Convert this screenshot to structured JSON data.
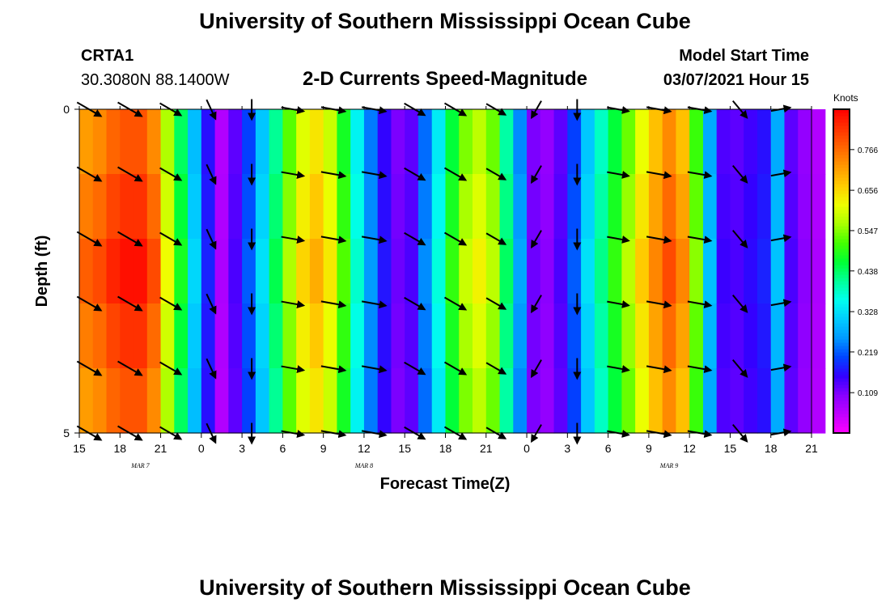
{
  "header": {
    "title": "University of Southern Mississippi Ocean Cube",
    "station": "CRTA1",
    "coords": "30.3080N 88.1400W",
    "plot_title": "2-D Currents Speed-Magnitude",
    "model_start_label": "Model Start Time",
    "model_start_value": "03/07/2021 Hour 15"
  },
  "footer": {
    "title": "University of Southern Mississippi Ocean Cube"
  },
  "colorbar": {
    "unit": "Knots",
    "tick_labels": [
      "0.766",
      "0.656",
      "0.547",
      "0.438",
      "0.328",
      "0.219",
      "0.109"
    ],
    "tick_values": [
      0.766,
      0.656,
      0.547,
      0.438,
      0.328,
      0.219,
      0.109
    ],
    "range": [
      0.0,
      0.875
    ],
    "colors": [
      "#ff00ff",
      "#c000ff",
      "#8800ff",
      "#3300ff",
      "#0044ff",
      "#0099ff",
      "#00ccff",
      "#00ffee",
      "#00ff99",
      "#00ff33",
      "#44ff00",
      "#aaff00",
      "#eeff00",
      "#ffcc00",
      "#ff9900",
      "#ff6600",
      "#ff3300",
      "#ff0000"
    ]
  },
  "chart_data": {
    "type": "heatmap",
    "title": "2-D Currents Speed-Magnitude",
    "xlabel": "Forecast Time(Z)",
    "ylabel": "Depth (ft)",
    "y_tick_labels": [
      "0",
      "5"
    ],
    "ylim": [
      0,
      5
    ],
    "x_tick_labels": [
      "15",
      "18",
      "21",
      "0",
      "3",
      "6",
      "9",
      "12",
      "15",
      "18",
      "21",
      "0",
      "3",
      "6",
      "9",
      "12",
      "15",
      "18",
      "21"
    ],
    "x_hours": [
      0,
      3,
      6,
      9,
      12,
      15,
      18,
      21,
      24,
      27,
      30,
      33,
      36,
      39,
      42,
      45,
      48,
      51,
      54
    ],
    "xlim": [
      0,
      54
    ],
    "date_labels": [
      {
        "label": "MAR 7",
        "hour": 4.5
      },
      {
        "label": "MAR 8",
        "hour": 21
      },
      {
        "label": "MAR 9",
        "hour": 43.5
      }
    ],
    "depth_layers": 5,
    "speed_knots_by_hour": [
      0.78,
      0.8,
      0.84,
      0.86,
      0.86,
      0.8,
      0.62,
      0.48,
      0.32,
      0.18,
      0.07,
      0.14,
      0.22,
      0.33,
      0.45,
      0.57,
      0.66,
      0.7,
      0.64,
      0.52,
      0.38,
      0.26,
      0.17,
      0.12,
      0.14,
      0.25,
      0.37,
      0.5,
      0.59,
      0.63,
      0.58,
      0.44,
      0.27,
      0.12,
      0.1,
      0.14,
      0.22,
      0.33,
      0.42,
      0.5,
      0.58,
      0.67,
      0.74,
      0.8,
      0.74,
      0.55,
      0.3,
      0.15,
      0.14,
      0.16,
      0.18,
      0.3,
      0.14,
      0.1,
      0.07
    ],
    "vector_hours": [
      0,
      3,
      6,
      9,
      12,
      15,
      18,
      21,
      24,
      27,
      30,
      33,
      36,
      39,
      42,
      45,
      48,
      51
    ],
    "vector_direction_deg": [
      120,
      120,
      120,
      155,
      180,
      100,
      100,
      100,
      120,
      120,
      120,
      210,
      180,
      100,
      100,
      100,
      140,
      80
    ],
    "vector_magnitude": [
      0.8,
      0.8,
      0.6,
      0.4,
      0.35,
      0.5,
      0.6,
      0.6,
      0.55,
      0.6,
      0.45,
      0.3,
      0.35,
      0.45,
      0.6,
      0.55,
      0.45,
      0.3
    ]
  }
}
